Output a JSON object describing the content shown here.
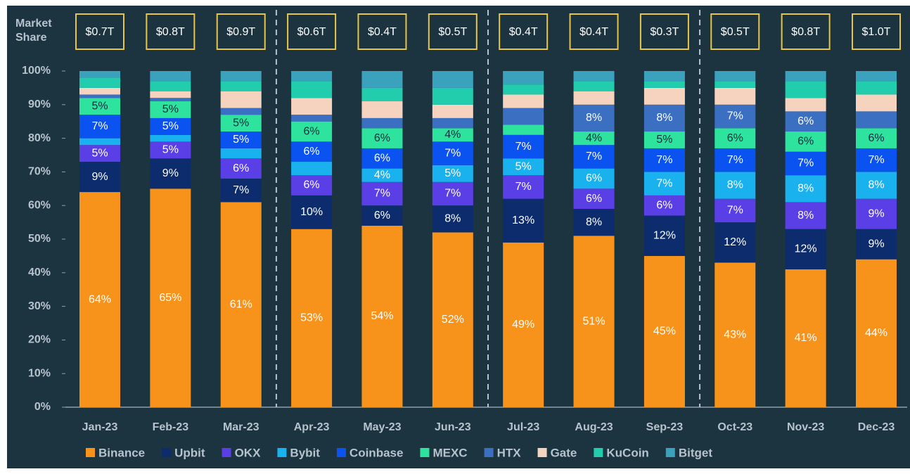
{
  "chart_data": {
    "type": "stacked_bar",
    "y_label": "Market Share",
    "categories": [
      "Jan-23",
      "Feb-23",
      "Mar-23",
      "Apr-23",
      "May-23",
      "Jun-23",
      "Jul-23",
      "Aug-23",
      "Sep-23",
      "Oct-23",
      "Nov-23",
      "Dec-23"
    ],
    "top_labels": [
      "$0.7T",
      "$0.8T",
      "$0.9T",
      "$0.6T",
      "$0.4T",
      "$0.5T",
      "$0.4T",
      "$0.4T",
      "$0.3T",
      "$0.5T",
      "$0.8T",
      "$1.0T"
    ],
    "ylim": [
      0,
      100
    ],
    "yticks": [
      {
        "value": 0,
        "label": "0%"
      },
      {
        "value": 10,
        "label": "10%"
      },
      {
        "value": 20,
        "label": "20%"
      },
      {
        "value": 30,
        "label": "30%"
      },
      {
        "value": 40,
        "label": "40%"
      },
      {
        "value": 50,
        "label": "50%"
      },
      {
        "value": 60,
        "label": "60%"
      },
      {
        "value": 70,
        "label": "70%"
      },
      {
        "value": 80,
        "label": "80%"
      },
      {
        "value": 90,
        "label": "90%"
      },
      {
        "value": 100,
        "label": "100%"
      }
    ],
    "series": [
      {
        "name": "Binance",
        "color": "#f7931a",
        "values": [
          64,
          65,
          61,
          53,
          54,
          52,
          49,
          51,
          45,
          43,
          41,
          44
        ],
        "value_labels": [
          "64%",
          "65%",
          "61%",
          "53%",
          "54%",
          "52%",
          "49%",
          "51%",
          "45%",
          "43%",
          "41%",
          "44%"
        ]
      },
      {
        "name": "Upbit",
        "color": "#0c2c6e",
        "values": [
          9,
          9,
          7,
          10,
          6,
          8,
          13,
          8,
          12,
          12,
          12,
          9
        ],
        "value_labels": [
          "9%",
          "9%",
          "7%",
          "10%",
          "6%",
          "8%",
          "13%",
          "8%",
          "12%",
          "12%",
          "12%",
          "9%"
        ]
      },
      {
        "name": "OKX",
        "color": "#5b3fe6",
        "values": [
          5,
          5,
          6,
          6,
          7,
          7,
          7,
          6,
          6,
          7,
          8,
          9
        ],
        "value_labels": [
          "5%",
          "5%",
          "6%",
          "6%",
          "7%",
          "7%",
          "7%",
          "6%",
          "6%",
          "7%",
          "8%",
          "9%"
        ]
      },
      {
        "name": "Bybit",
        "color": "#1ab2ee",
        "values": [
          2,
          2,
          3,
          4,
          4,
          5,
          5,
          6,
          7,
          8,
          8,
          8
        ],
        "value_labels": [
          null,
          null,
          null,
          null,
          "4%",
          "5%",
          "5%",
          "6%",
          "7%",
          "8%",
          "8%",
          "8%"
        ]
      },
      {
        "name": "Coinbase",
        "color": "#0b53f0",
        "values": [
          7,
          5,
          5,
          6,
          6,
          7,
          7,
          7,
          7,
          7,
          7,
          7
        ],
        "value_labels": [
          "7%",
          "5%",
          "5%",
          "6%",
          "6%",
          "7%",
          "7%",
          "7%",
          "7%",
          "7%",
          "7%",
          "7%"
        ]
      },
      {
        "name": "MEXC",
        "color": "#2de39e",
        "values": [
          5,
          5,
          5,
          6,
          6,
          4,
          3,
          4,
          5,
          6,
          6,
          6
        ],
        "value_labels": [
          "5%",
          "5%",
          "5%",
          "6%",
          "6%",
          "4%",
          null,
          "4%",
          "5%",
          "6%",
          "6%",
          "6%"
        ]
      },
      {
        "name": "HTX",
        "color": "#3a6fc2",
        "values": [
          1,
          1,
          2,
          2,
          3,
          3,
          5,
          8,
          8,
          7,
          6,
          5
        ],
        "value_labels": [
          null,
          null,
          null,
          null,
          null,
          null,
          null,
          "8%",
          "8%",
          "7%",
          "6%",
          null
        ]
      },
      {
        "name": "Gate",
        "color": "#f5d3bf",
        "values": [
          2,
          2,
          5,
          5,
          5,
          4,
          4,
          4,
          5,
          5,
          4,
          5
        ],
        "value_labels": [
          null,
          null,
          null,
          null,
          null,
          null,
          null,
          null,
          null,
          null,
          null,
          null
        ]
      },
      {
        "name": "KuCoin",
        "color": "#21cdac",
        "values": [
          3,
          3,
          3,
          5,
          4,
          5,
          3,
          3,
          2,
          2,
          5,
          4
        ],
        "value_labels": [
          null,
          null,
          null,
          null,
          null,
          null,
          null,
          null,
          null,
          null,
          null,
          null
        ]
      },
      {
        "name": "Bitget",
        "color": "#3aa2bd",
        "values": [
          2,
          3,
          3,
          3,
          5,
          5,
          4,
          3,
          3,
          3,
          3,
          3
        ],
        "value_labels": [
          null,
          null,
          null,
          null,
          null,
          null,
          null,
          null,
          null,
          null,
          null,
          null
        ]
      }
    ]
  }
}
